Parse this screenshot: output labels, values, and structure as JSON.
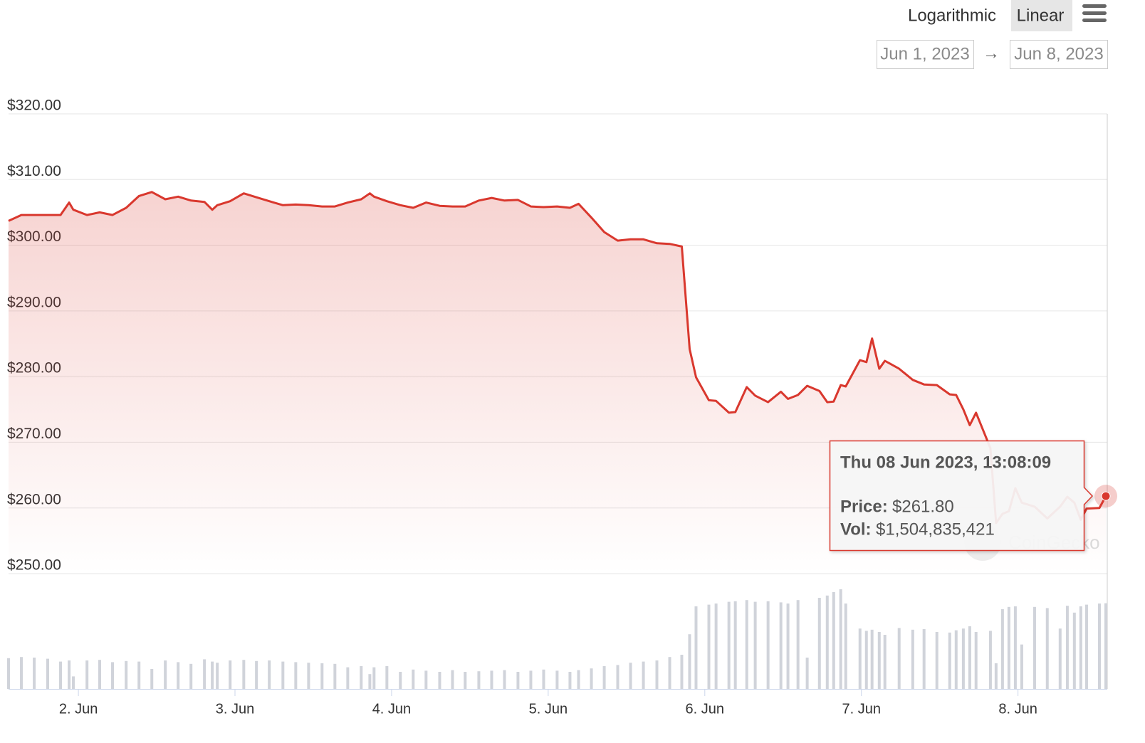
{
  "controls": {
    "scale_options": [
      "Logarithmic",
      "Linear"
    ],
    "selected": "Linear",
    "date_from": "Jun 1, 2023",
    "arrow": "→",
    "date_to": "Jun 8, 2023"
  },
  "chart_data": {
    "type": "line",
    "watermark": "CoinGecko",
    "x": [
      1.554,
      1.636,
      1.718,
      1.804,
      1.886,
      1.941,
      1.968,
      2.055,
      2.136,
      2.218,
      2.305,
      2.387,
      2.469,
      2.555,
      2.637,
      2.719,
      2.805,
      2.855,
      2.887,
      2.969,
      3.056,
      3.137,
      3.219,
      3.306,
      3.388,
      3.47,
      3.556,
      3.638,
      3.72,
      3.806,
      3.861,
      3.888,
      3.97,
      4.056,
      4.138,
      4.22,
      4.307,
      4.389,
      4.47,
      4.557,
      4.639,
      4.721,
      4.807,
      4.889,
      4.971,
      5.057,
      5.139,
      5.194,
      5.276,
      5.358,
      5.444,
      5.526,
      5.608,
      5.694,
      5.776,
      5.853,
      5.903,
      5.944,
      6.026,
      6.072,
      6.154,
      6.195,
      6.268,
      6.322,
      6.404,
      6.486,
      6.531,
      6.595,
      6.654,
      6.732,
      6.782,
      6.823,
      6.868,
      6.9,
      6.991,
      7.032,
      7.068,
      7.114,
      7.15,
      7.241,
      7.328,
      7.4,
      7.482,
      7.564,
      7.605,
      7.651,
      7.692,
      7.732,
      7.824,
      7.86,
      7.901,
      7.942,
      7.983,
      8.024,
      8.106,
      8.187,
      8.269,
      8.315,
      8.36,
      8.401,
      8.438,
      8.52,
      8.561
    ],
    "xlim": [
      1.554,
      8.57
    ],
    "xticks": [
      {
        "value": 2,
        "label": "2. Jun"
      },
      {
        "value": 3,
        "label": "3. Jun"
      },
      {
        "value": 4,
        "label": "4. Jun"
      },
      {
        "value": 5,
        "label": "5. Jun"
      },
      {
        "value": 6,
        "label": "6. Jun"
      },
      {
        "value": 7,
        "label": "7. Jun"
      },
      {
        "value": 8,
        "label": "8. Jun"
      }
    ],
    "ylim": [
      250,
      320
    ],
    "yticks": [
      {
        "value": 250,
        "label": "$250.00"
      },
      {
        "value": 260,
        "label": "$260.00"
      },
      {
        "value": 270,
        "label": "$270.00"
      },
      {
        "value": 280,
        "label": "$280.00"
      },
      {
        "value": 290,
        "label": "$290.00"
      },
      {
        "value": 300,
        "label": "$300.00"
      },
      {
        "value": 310,
        "label": "$310.00"
      },
      {
        "value": 320,
        "label": "$320.00"
      }
    ],
    "y2lim": [
      0,
      2000000000
    ],
    "grid": true,
    "series": [
      {
        "type": "area",
        "color": "#d9382e",
        "values": [
          303.7,
          304.6,
          304.6,
          304.6,
          304.6,
          306.5,
          305.4,
          304.6,
          305.0,
          304.6,
          305.7,
          307.5,
          308.1,
          307.0,
          307.4,
          306.8,
          306.6,
          305.4,
          306.1,
          306.7,
          307.9,
          307.3,
          306.7,
          306.1,
          306.2,
          306.1,
          305.9,
          305.9,
          306.5,
          307.0,
          307.9,
          307.4,
          306.7,
          306.1,
          305.7,
          306.5,
          306.0,
          305.9,
          305.9,
          306.8,
          307.2,
          306.8,
          306.9,
          305.9,
          305.8,
          305.9,
          305.7,
          306.3,
          304.2,
          302.0,
          300.7,
          300.9,
          300.9,
          300.3,
          300.2,
          299.8,
          284.2,
          279.9,
          276.4,
          276.3,
          274.5,
          274.6,
          278.4,
          277.1,
          276.1,
          277.7,
          276.6,
          277.2,
          278.6,
          277.8,
          276.1,
          276.2,
          278.7,
          278.5,
          282.5,
          282.2,
          285.8,
          281.2,
          282.4,
          281.2,
          279.5,
          278.8,
          278.7,
          277.3,
          277.2,
          275.0,
          272.6,
          274.5,
          269.1,
          257.7,
          259.1,
          259.5,
          263.0,
          260.8,
          260.2,
          258.4,
          260.2,
          261.7,
          260.8,
          258.2,
          259.9,
          260.0,
          261.8
        ]
      },
      {
        "type": "bar",
        "axis": "y2",
        "color": "#d0d3da",
        "values": [
          540000000,
          560000000,
          550000000,
          530000000,
          480000000,
          500000000,
          220000000,
          500000000,
          510000000,
          470000000,
          490000000,
          480000000,
          350000000,
          500000000,
          470000000,
          440000000,
          520000000,
          480000000,
          460000000,
          500000000,
          510000000,
          490000000,
          500000000,
          480000000,
          470000000,
          460000000,
          450000000,
          440000000,
          380000000,
          400000000,
          260000000,
          380000000,
          400000000,
          300000000,
          340000000,
          320000000,
          300000000,
          330000000,
          300000000,
          310000000,
          320000000,
          330000000,
          300000000,
          320000000,
          340000000,
          320000000,
          300000000,
          330000000,
          360000000,
          400000000,
          420000000,
          460000000,
          480000000,
          500000000,
          560000000,
          600000000,
          960000000,
          1450000000,
          1480000000,
          1500000000,
          1530000000,
          1540000000,
          1560000000,
          1530000000,
          1540000000,
          1520000000,
          1500000000,
          1560000000,
          550000000,
          1600000000,
          1640000000,
          1700000000,
          1750000000,
          1500000000,
          1060000000,
          1020000000,
          1040000000,
          1000000000,
          950000000,
          1070000000,
          1040000000,
          1050000000,
          1000000000,
          990000000,
          1030000000,
          1060000000,
          1100000000,
          1000000000,
          1020000000,
          450000000,
          1400000000,
          1440000000,
          1450000000,
          780000000,
          1440000000,
          1420000000,
          1060000000,
          1460000000,
          1340000000,
          1450000000,
          1480000000,
          1500000000,
          1504835421
        ]
      }
    ],
    "tooltip": {
      "date": "Thu 08 Jun 2023, 13:08:09",
      "price_label": "Price:",
      "price": "$261.80",
      "vol_label": "Vol:",
      "vol": "$1,504,835,421"
    }
  }
}
